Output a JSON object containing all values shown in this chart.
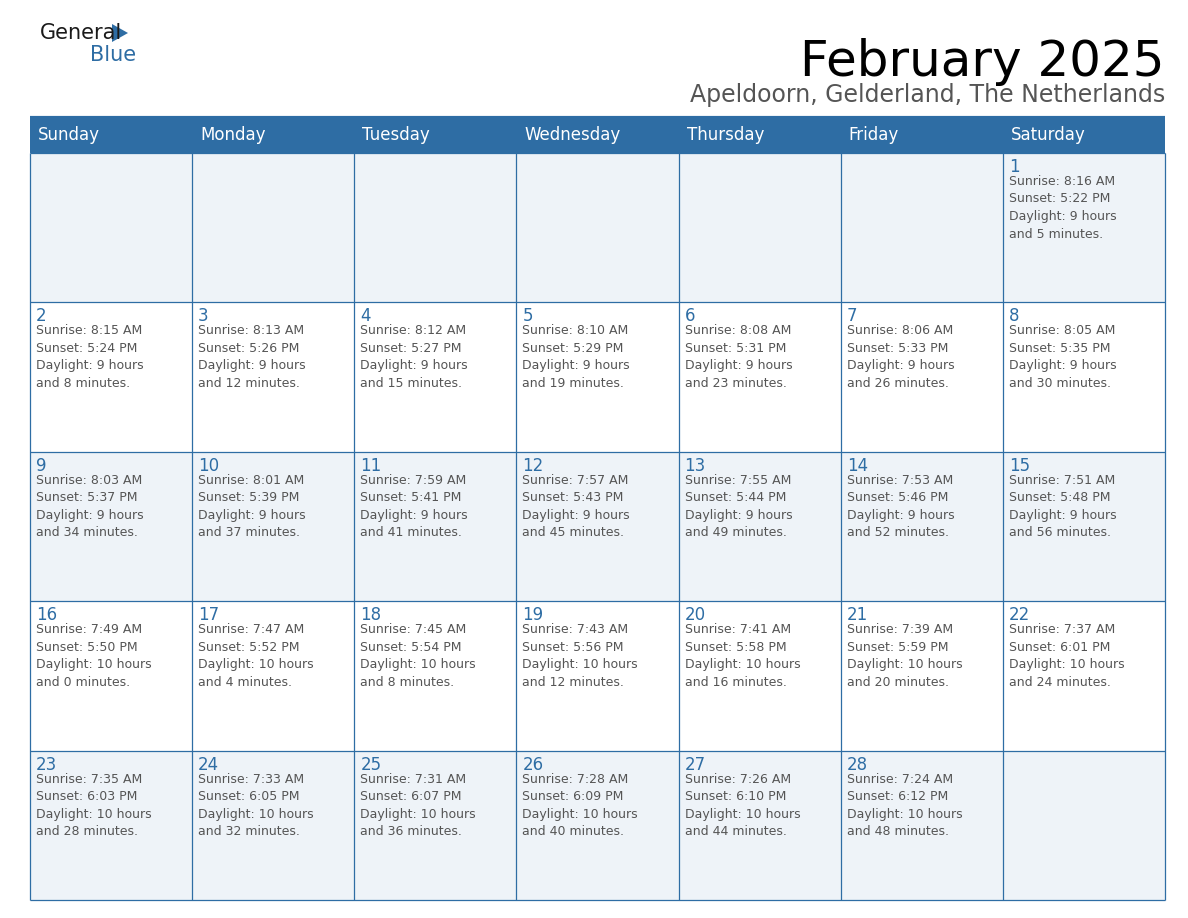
{
  "title": "February 2025",
  "subtitle": "Apeldoorn, Gelderland, The Netherlands",
  "header_bg": "#2E6DA4",
  "header_text_color": "#FFFFFF",
  "border_color": "#2E6DA4",
  "day_number_color": "#2E6DA4",
  "cell_text_color": "#555555",
  "days_of_week": [
    "Sunday",
    "Monday",
    "Tuesday",
    "Wednesday",
    "Thursday",
    "Friday",
    "Saturday"
  ],
  "weeks": [
    [
      {
        "day": null,
        "info": null
      },
      {
        "day": null,
        "info": null
      },
      {
        "day": null,
        "info": null
      },
      {
        "day": null,
        "info": null
      },
      {
        "day": null,
        "info": null
      },
      {
        "day": null,
        "info": null
      },
      {
        "day": 1,
        "info": "Sunrise: 8:16 AM\nSunset: 5:22 PM\nDaylight: 9 hours\nand 5 minutes."
      }
    ],
    [
      {
        "day": 2,
        "info": "Sunrise: 8:15 AM\nSunset: 5:24 PM\nDaylight: 9 hours\nand 8 minutes."
      },
      {
        "day": 3,
        "info": "Sunrise: 8:13 AM\nSunset: 5:26 PM\nDaylight: 9 hours\nand 12 minutes."
      },
      {
        "day": 4,
        "info": "Sunrise: 8:12 AM\nSunset: 5:27 PM\nDaylight: 9 hours\nand 15 minutes."
      },
      {
        "day": 5,
        "info": "Sunrise: 8:10 AM\nSunset: 5:29 PM\nDaylight: 9 hours\nand 19 minutes."
      },
      {
        "day": 6,
        "info": "Sunrise: 8:08 AM\nSunset: 5:31 PM\nDaylight: 9 hours\nand 23 minutes."
      },
      {
        "day": 7,
        "info": "Sunrise: 8:06 AM\nSunset: 5:33 PM\nDaylight: 9 hours\nand 26 minutes."
      },
      {
        "day": 8,
        "info": "Sunrise: 8:05 AM\nSunset: 5:35 PM\nDaylight: 9 hours\nand 30 minutes."
      }
    ],
    [
      {
        "day": 9,
        "info": "Sunrise: 8:03 AM\nSunset: 5:37 PM\nDaylight: 9 hours\nand 34 minutes."
      },
      {
        "day": 10,
        "info": "Sunrise: 8:01 AM\nSunset: 5:39 PM\nDaylight: 9 hours\nand 37 minutes."
      },
      {
        "day": 11,
        "info": "Sunrise: 7:59 AM\nSunset: 5:41 PM\nDaylight: 9 hours\nand 41 minutes."
      },
      {
        "day": 12,
        "info": "Sunrise: 7:57 AM\nSunset: 5:43 PM\nDaylight: 9 hours\nand 45 minutes."
      },
      {
        "day": 13,
        "info": "Sunrise: 7:55 AM\nSunset: 5:44 PM\nDaylight: 9 hours\nand 49 minutes."
      },
      {
        "day": 14,
        "info": "Sunrise: 7:53 AM\nSunset: 5:46 PM\nDaylight: 9 hours\nand 52 minutes."
      },
      {
        "day": 15,
        "info": "Sunrise: 7:51 AM\nSunset: 5:48 PM\nDaylight: 9 hours\nand 56 minutes."
      }
    ],
    [
      {
        "day": 16,
        "info": "Sunrise: 7:49 AM\nSunset: 5:50 PM\nDaylight: 10 hours\nand 0 minutes."
      },
      {
        "day": 17,
        "info": "Sunrise: 7:47 AM\nSunset: 5:52 PM\nDaylight: 10 hours\nand 4 minutes."
      },
      {
        "day": 18,
        "info": "Sunrise: 7:45 AM\nSunset: 5:54 PM\nDaylight: 10 hours\nand 8 minutes."
      },
      {
        "day": 19,
        "info": "Sunrise: 7:43 AM\nSunset: 5:56 PM\nDaylight: 10 hours\nand 12 minutes."
      },
      {
        "day": 20,
        "info": "Sunrise: 7:41 AM\nSunset: 5:58 PM\nDaylight: 10 hours\nand 16 minutes."
      },
      {
        "day": 21,
        "info": "Sunrise: 7:39 AM\nSunset: 5:59 PM\nDaylight: 10 hours\nand 20 minutes."
      },
      {
        "day": 22,
        "info": "Sunrise: 7:37 AM\nSunset: 6:01 PM\nDaylight: 10 hours\nand 24 minutes."
      }
    ],
    [
      {
        "day": 23,
        "info": "Sunrise: 7:35 AM\nSunset: 6:03 PM\nDaylight: 10 hours\nand 28 minutes."
      },
      {
        "day": 24,
        "info": "Sunrise: 7:33 AM\nSunset: 6:05 PM\nDaylight: 10 hours\nand 32 minutes."
      },
      {
        "day": 25,
        "info": "Sunrise: 7:31 AM\nSunset: 6:07 PM\nDaylight: 10 hours\nand 36 minutes."
      },
      {
        "day": 26,
        "info": "Sunrise: 7:28 AM\nSunset: 6:09 PM\nDaylight: 10 hours\nand 40 minutes."
      },
      {
        "day": 27,
        "info": "Sunrise: 7:26 AM\nSunset: 6:10 PM\nDaylight: 10 hours\nand 44 minutes."
      },
      {
        "day": 28,
        "info": "Sunrise: 7:24 AM\nSunset: 6:12 PM\nDaylight: 10 hours\nand 48 minutes."
      },
      {
        "day": null,
        "info": null
      }
    ]
  ],
  "logo_color_general": "#1a1a1a",
  "logo_color_blue": "#2E6DA4",
  "logo_triangle_color": "#2E6DA4",
  "title_fontsize": 36,
  "subtitle_fontsize": 17,
  "header_fontsize": 12,
  "day_num_fontsize": 12,
  "cell_info_fontsize": 9
}
